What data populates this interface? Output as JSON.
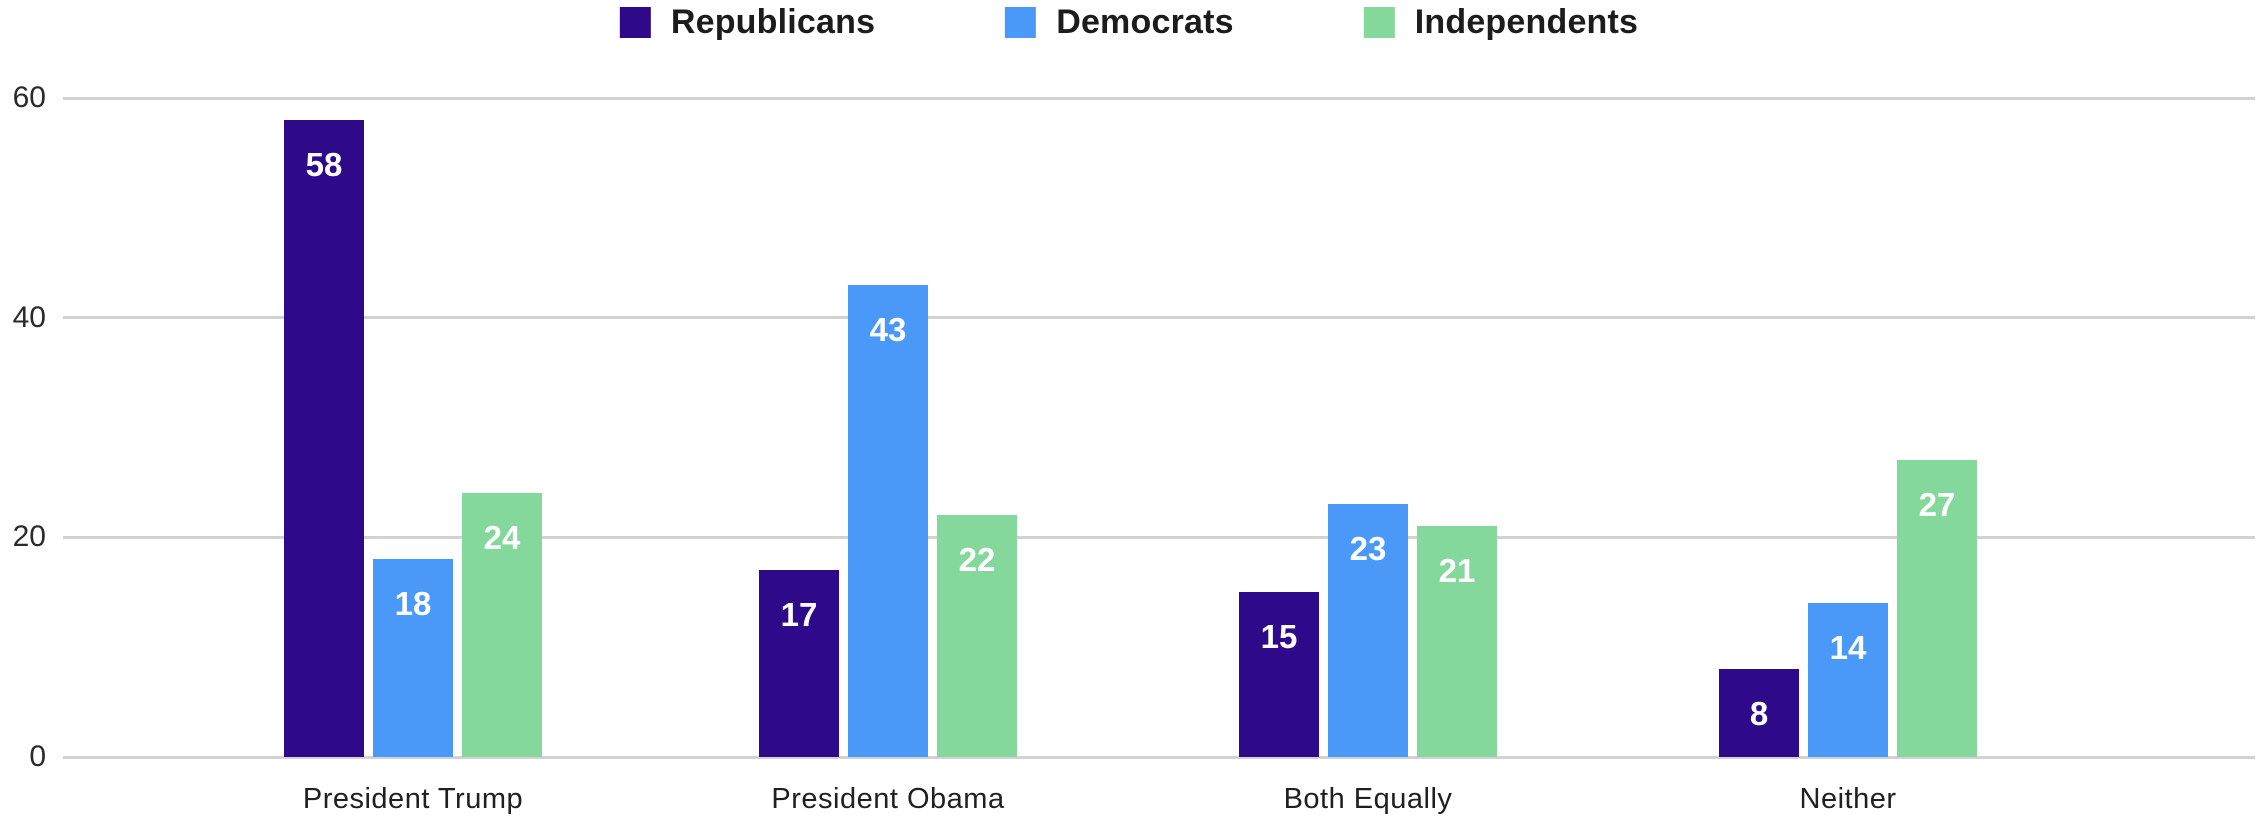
{
  "chart_data": {
    "type": "bar",
    "title": "",
    "xlabel": "",
    "ylabel": "",
    "categories": [
      "President Trump",
      "President Obama",
      "Both Equally",
      "Neither"
    ],
    "series": [
      {
        "name": "Republicans",
        "color": "#2e0a8b",
        "values": [
          58,
          17,
          15,
          8
        ]
      },
      {
        "name": "Democrats",
        "color": "#4a98f8",
        "values": [
          18,
          43,
          23,
          14
        ]
      },
      {
        "name": "Independents",
        "color": "#85d89b",
        "values": [
          24,
          22,
          21,
          27
        ]
      }
    ],
    "ylim": [
      0,
      60
    ],
    "yticks": [
      0,
      20,
      40,
      60
    ],
    "grid": true,
    "legend_position": "top-center",
    "value_labels": "inside-top"
  },
  "colors": {
    "background": "#ffffff",
    "grid": "#d2d2d2",
    "axis_text": "#2a2a2a",
    "category_text": "#202020",
    "legend_text": "#1c1c1c",
    "value_label_text": "#ffffff"
  }
}
